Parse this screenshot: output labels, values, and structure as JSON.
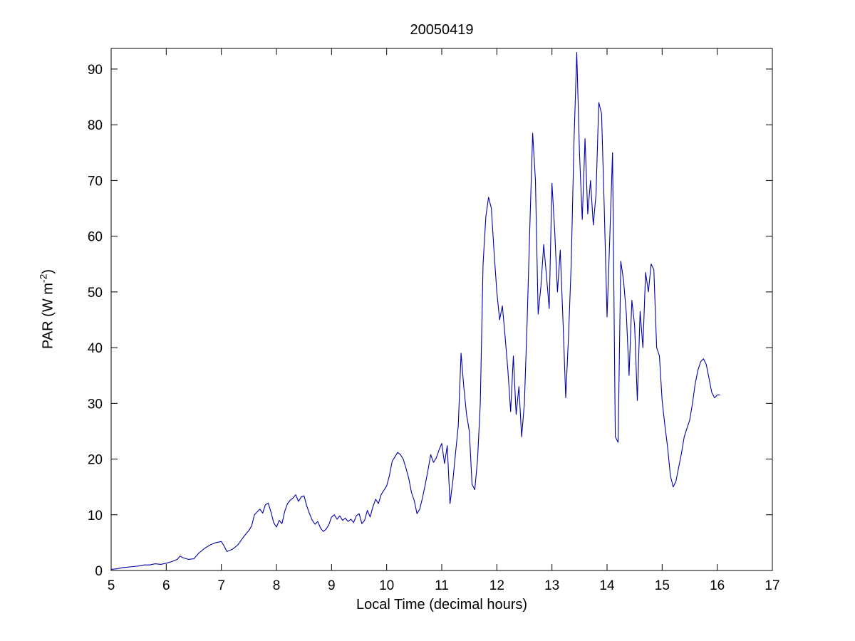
{
  "figure": {
    "background": "#ffffff"
  },
  "chart_data": {
    "type": "line",
    "title": "20050419",
    "xlabel": "Local Time (decimal hours)",
    "ylabel": {
      "prefix": "PAR (W m",
      "sup": "-2",
      "suffix": ")"
    },
    "xlim": [
      5,
      17
    ],
    "ylim": [
      0,
      93.7
    ],
    "xticks": [
      5,
      6,
      7,
      8,
      9,
      10,
      11,
      12,
      13,
      14,
      15,
      16,
      17
    ],
    "yticks": [
      0,
      10,
      20,
      30,
      40,
      50,
      60,
      70,
      80,
      90
    ],
    "grid": false,
    "line_color": "#0000AA",
    "series_name": "PAR",
    "points": [
      [
        5.0,
        0.2
      ],
      [
        5.1,
        0.3
      ],
      [
        5.2,
        0.5
      ],
      [
        5.3,
        0.6
      ],
      [
        5.4,
        0.7
      ],
      [
        5.5,
        0.8
      ],
      [
        5.6,
        1.0
      ],
      [
        5.7,
        1.0
      ],
      [
        5.8,
        1.2
      ],
      [
        5.9,
        1.1
      ],
      [
        6.0,
        1.3
      ],
      [
        6.1,
        1.6
      ],
      [
        6.2,
        2.0
      ],
      [
        6.25,
        2.6
      ],
      [
        6.3,
        2.3
      ],
      [
        6.4,
        2.0
      ],
      [
        6.5,
        2.1
      ],
      [
        6.6,
        3.2
      ],
      [
        6.7,
        4.0
      ],
      [
        6.8,
        4.6
      ],
      [
        6.9,
        5.0
      ],
      [
        7.0,
        5.2
      ],
      [
        7.05,
        4.4
      ],
      [
        7.1,
        3.4
      ],
      [
        7.2,
        3.8
      ],
      [
        7.3,
        4.6
      ],
      [
        7.4,
        6.0
      ],
      [
        7.5,
        7.2
      ],
      [
        7.55,
        8.0
      ],
      [
        7.6,
        10.0
      ],
      [
        7.65,
        10.5
      ],
      [
        7.7,
        11.0
      ],
      [
        7.75,
        10.3
      ],
      [
        7.8,
        11.8
      ],
      [
        7.85,
        12.1
      ],
      [
        7.9,
        10.5
      ],
      [
        7.95,
        8.6
      ],
      [
        8.0,
        7.8
      ],
      [
        8.05,
        9.0
      ],
      [
        8.1,
        8.4
      ],
      [
        8.15,
        10.6
      ],
      [
        8.2,
        12.0
      ],
      [
        8.25,
        12.6
      ],
      [
        8.3,
        13.0
      ],
      [
        8.35,
        13.6
      ],
      [
        8.4,
        12.4
      ],
      [
        8.45,
        13.2
      ],
      [
        8.5,
        13.4
      ],
      [
        8.55,
        11.6
      ],
      [
        8.6,
        10.2
      ],
      [
        8.65,
        9.0
      ],
      [
        8.7,
        8.3
      ],
      [
        8.75,
        8.8
      ],
      [
        8.8,
        7.6
      ],
      [
        8.85,
        7.0
      ],
      [
        8.9,
        7.4
      ],
      [
        8.95,
        8.2
      ],
      [
        9.0,
        9.6
      ],
      [
        9.05,
        10.0
      ],
      [
        9.1,
        9.2
      ],
      [
        9.15,
        9.8
      ],
      [
        9.2,
        9.0
      ],
      [
        9.25,
        9.4
      ],
      [
        9.3,
        8.8
      ],
      [
        9.35,
        9.2
      ],
      [
        9.4,
        8.6
      ],
      [
        9.45,
        9.8
      ],
      [
        9.5,
        10.2
      ],
      [
        9.55,
        8.4
      ],
      [
        9.6,
        9.0
      ],
      [
        9.65,
        10.8
      ],
      [
        9.7,
        9.6
      ],
      [
        9.75,
        11.4
      ],
      [
        9.8,
        12.8
      ],
      [
        9.85,
        12.0
      ],
      [
        9.9,
        13.6
      ],
      [
        9.95,
        14.4
      ],
      [
        10.0,
        15.2
      ],
      [
        10.05,
        17.0
      ],
      [
        10.1,
        19.6
      ],
      [
        10.15,
        20.4
      ],
      [
        10.2,
        21.2
      ],
      [
        10.25,
        20.8
      ],
      [
        10.3,
        20.0
      ],
      [
        10.35,
        18.4
      ],
      [
        10.4,
        16.6
      ],
      [
        10.45,
        14.0
      ],
      [
        10.5,
        12.6
      ],
      [
        10.55,
        10.2
      ],
      [
        10.6,
        11.0
      ],
      [
        10.65,
        13.0
      ],
      [
        10.7,
        15.4
      ],
      [
        10.75,
        18.0
      ],
      [
        10.8,
        20.8
      ],
      [
        10.85,
        19.4
      ],
      [
        10.9,
        20.2
      ],
      [
        10.95,
        21.6
      ],
      [
        11.0,
        22.8
      ],
      [
        11.05,
        19.2
      ],
      [
        11.1,
        22.4
      ],
      [
        11.15,
        12.0
      ],
      [
        11.2,
        16.0
      ],
      [
        11.25,
        21.0
      ],
      [
        11.3,
        26.0
      ],
      [
        11.35,
        39.0
      ],
      [
        11.4,
        33.0
      ],
      [
        11.45,
        28.0
      ],
      [
        11.5,
        25.0
      ],
      [
        11.55,
        15.5
      ],
      [
        11.6,
        14.5
      ],
      [
        11.65,
        20.0
      ],
      [
        11.7,
        30.0
      ],
      [
        11.75,
        55.0
      ],
      [
        11.8,
        63.5
      ],
      [
        11.85,
        67.0
      ],
      [
        11.9,
        65.0
      ],
      [
        11.95,
        57.0
      ],
      [
        12.0,
        50.0
      ],
      [
        12.05,
        45.0
      ],
      [
        12.1,
        47.5
      ],
      [
        12.15,
        42.0
      ],
      [
        12.2,
        36.0
      ],
      [
        12.25,
        28.5
      ],
      [
        12.3,
        38.5
      ],
      [
        12.35,
        28.0
      ],
      [
        12.4,
        33.0
      ],
      [
        12.45,
        24.0
      ],
      [
        12.5,
        30.0
      ],
      [
        12.55,
        45.0
      ],
      [
        12.6,
        62.0
      ],
      [
        12.65,
        78.5
      ],
      [
        12.7,
        70.0
      ],
      [
        12.75,
        46.0
      ],
      [
        12.8,
        51.0
      ],
      [
        12.85,
        58.5
      ],
      [
        12.9,
        53.0
      ],
      [
        12.95,
        47.0
      ],
      [
        13.0,
        69.5
      ],
      [
        13.05,
        61.0
      ],
      [
        13.1,
        50.0
      ],
      [
        13.15,
        57.5
      ],
      [
        13.2,
        45.0
      ],
      [
        13.25,
        31.0
      ],
      [
        13.3,
        42.0
      ],
      [
        13.35,
        55.0
      ],
      [
        13.4,
        77.0
      ],
      [
        13.45,
        93.0
      ],
      [
        13.5,
        75.0
      ],
      [
        13.55,
        63.0
      ],
      [
        13.6,
        77.5
      ],
      [
        13.65,
        64.0
      ],
      [
        13.7,
        70.0
      ],
      [
        13.75,
        62.0
      ],
      [
        13.8,
        67.5
      ],
      [
        13.85,
        84.0
      ],
      [
        13.9,
        82.0
      ],
      [
        13.95,
        65.0
      ],
      [
        14.0,
        45.5
      ],
      [
        14.05,
        60.0
      ],
      [
        14.1,
        75.0
      ],
      [
        14.15,
        24.0
      ],
      [
        14.2,
        23.0
      ],
      [
        14.25,
        55.5
      ],
      [
        14.3,
        52.0
      ],
      [
        14.35,
        46.0
      ],
      [
        14.4,
        35.0
      ],
      [
        14.45,
        48.5
      ],
      [
        14.5,
        44.0
      ],
      [
        14.55,
        30.5
      ],
      [
        14.6,
        46.5
      ],
      [
        14.65,
        40.0
      ],
      [
        14.7,
        53.5
      ],
      [
        14.75,
        50.0
      ],
      [
        14.8,
        55.0
      ],
      [
        14.85,
        54.0
      ],
      [
        14.9,
        40.0
      ],
      [
        14.95,
        38.5
      ],
      [
        15.0,
        30.5
      ],
      [
        15.05,
        26.0
      ],
      [
        15.1,
        22.0
      ],
      [
        15.15,
        17.0
      ],
      [
        15.2,
        15.0
      ],
      [
        15.25,
        16.0
      ],
      [
        15.3,
        18.5
      ],
      [
        15.35,
        21.0
      ],
      [
        15.4,
        24.0
      ],
      [
        15.45,
        25.5
      ],
      [
        15.5,
        27.0
      ],
      [
        15.55,
        30.0
      ],
      [
        15.6,
        33.5
      ],
      [
        15.65,
        36.0
      ],
      [
        15.7,
        37.5
      ],
      [
        15.75,
        38.0
      ],
      [
        15.8,
        37.0
      ],
      [
        15.85,
        34.5
      ],
      [
        15.9,
        32.0
      ],
      [
        15.95,
        31.0
      ],
      [
        16.0,
        31.5
      ],
      [
        16.05,
        31.5
      ]
    ]
  }
}
